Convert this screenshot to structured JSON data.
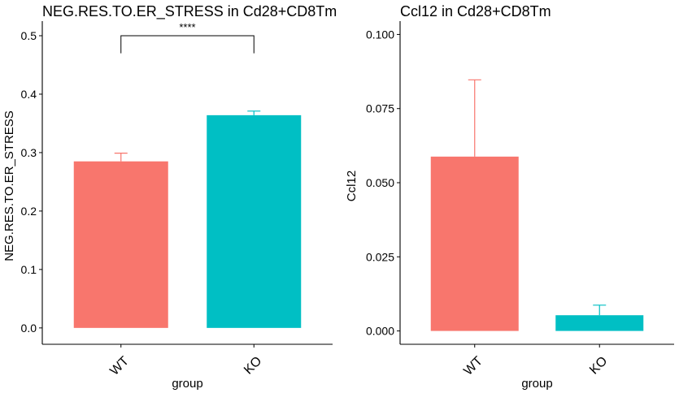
{
  "chart_data": [
    {
      "type": "bar",
      "title": "NEG.RES.TO.ER_STRESS in Cd28+CD8Tm",
      "xlabel": "group",
      "ylabel": "NEG.RES.TO.ER_STRESS",
      "categories": [
        "WT",
        "KO"
      ],
      "values": [
        0.285,
        0.364
      ],
      "error_upper": [
        0.299,
        0.371
      ],
      "colors": [
        "#F8766D",
        "#00BFC4"
      ],
      "ylim": [
        -0.028,
        0.525
      ],
      "yticks": [
        0.0,
        0.1,
        0.2,
        0.3,
        0.4,
        0.5
      ],
      "ytick_labels": [
        "0.0",
        "0.1",
        "0.2",
        "0.3",
        "0.4",
        "0.5"
      ],
      "significance": {
        "label": "****",
        "from": "WT",
        "to": "KO",
        "y": 0.5,
        "drop": 0.03
      },
      "grid": false,
      "legend": "none"
    },
    {
      "type": "bar",
      "title": "Ccl12 in Cd28+CD8Tm",
      "xlabel": "group",
      "ylabel": "Ccl12",
      "categories": [
        "WT",
        "KO"
      ],
      "values": [
        0.0588,
        0.0053
      ],
      "error_upper": [
        0.0847,
        0.0087
      ],
      "colors": [
        "#F8766D",
        "#00BFC4"
      ],
      "ylim": [
        -0.0045,
        0.1045
      ],
      "yticks": [
        0.0,
        0.025,
        0.05,
        0.075,
        0.1
      ],
      "ytick_labels": [
        "0.000",
        "0.025",
        "0.050",
        "0.075",
        "0.100"
      ],
      "grid": false,
      "legend": "none"
    }
  ]
}
